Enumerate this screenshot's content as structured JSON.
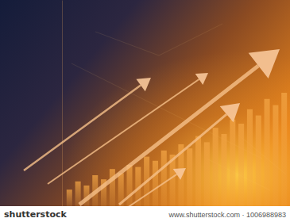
{
  "chart_data": {
    "type": "bar",
    "categories": [
      null,
      null,
      null,
      null,
      null,
      null,
      null,
      null,
      null,
      null,
      null,
      null,
      null,
      null,
      null,
      null,
      null,
      null,
      null,
      null,
      null,
      null,
      null,
      null,
      null,
      null
    ],
    "values": [
      8,
      12,
      10,
      15,
      13,
      18,
      16,
      20,
      19,
      24,
      22,
      27,
      25,
      30,
      28,
      34,
      31,
      38,
      35,
      42,
      40,
      47,
      44,
      52,
      49,
      55
    ],
    "color": "#f2a444",
    "ylim": [
      0,
      100
    ],
    "yticks": [],
    "tick_labels": false,
    "grid": false,
    "annotations": [
      "shutterstock",
      "www.shutterstock.com · 1006988983"
    ]
  }
}
